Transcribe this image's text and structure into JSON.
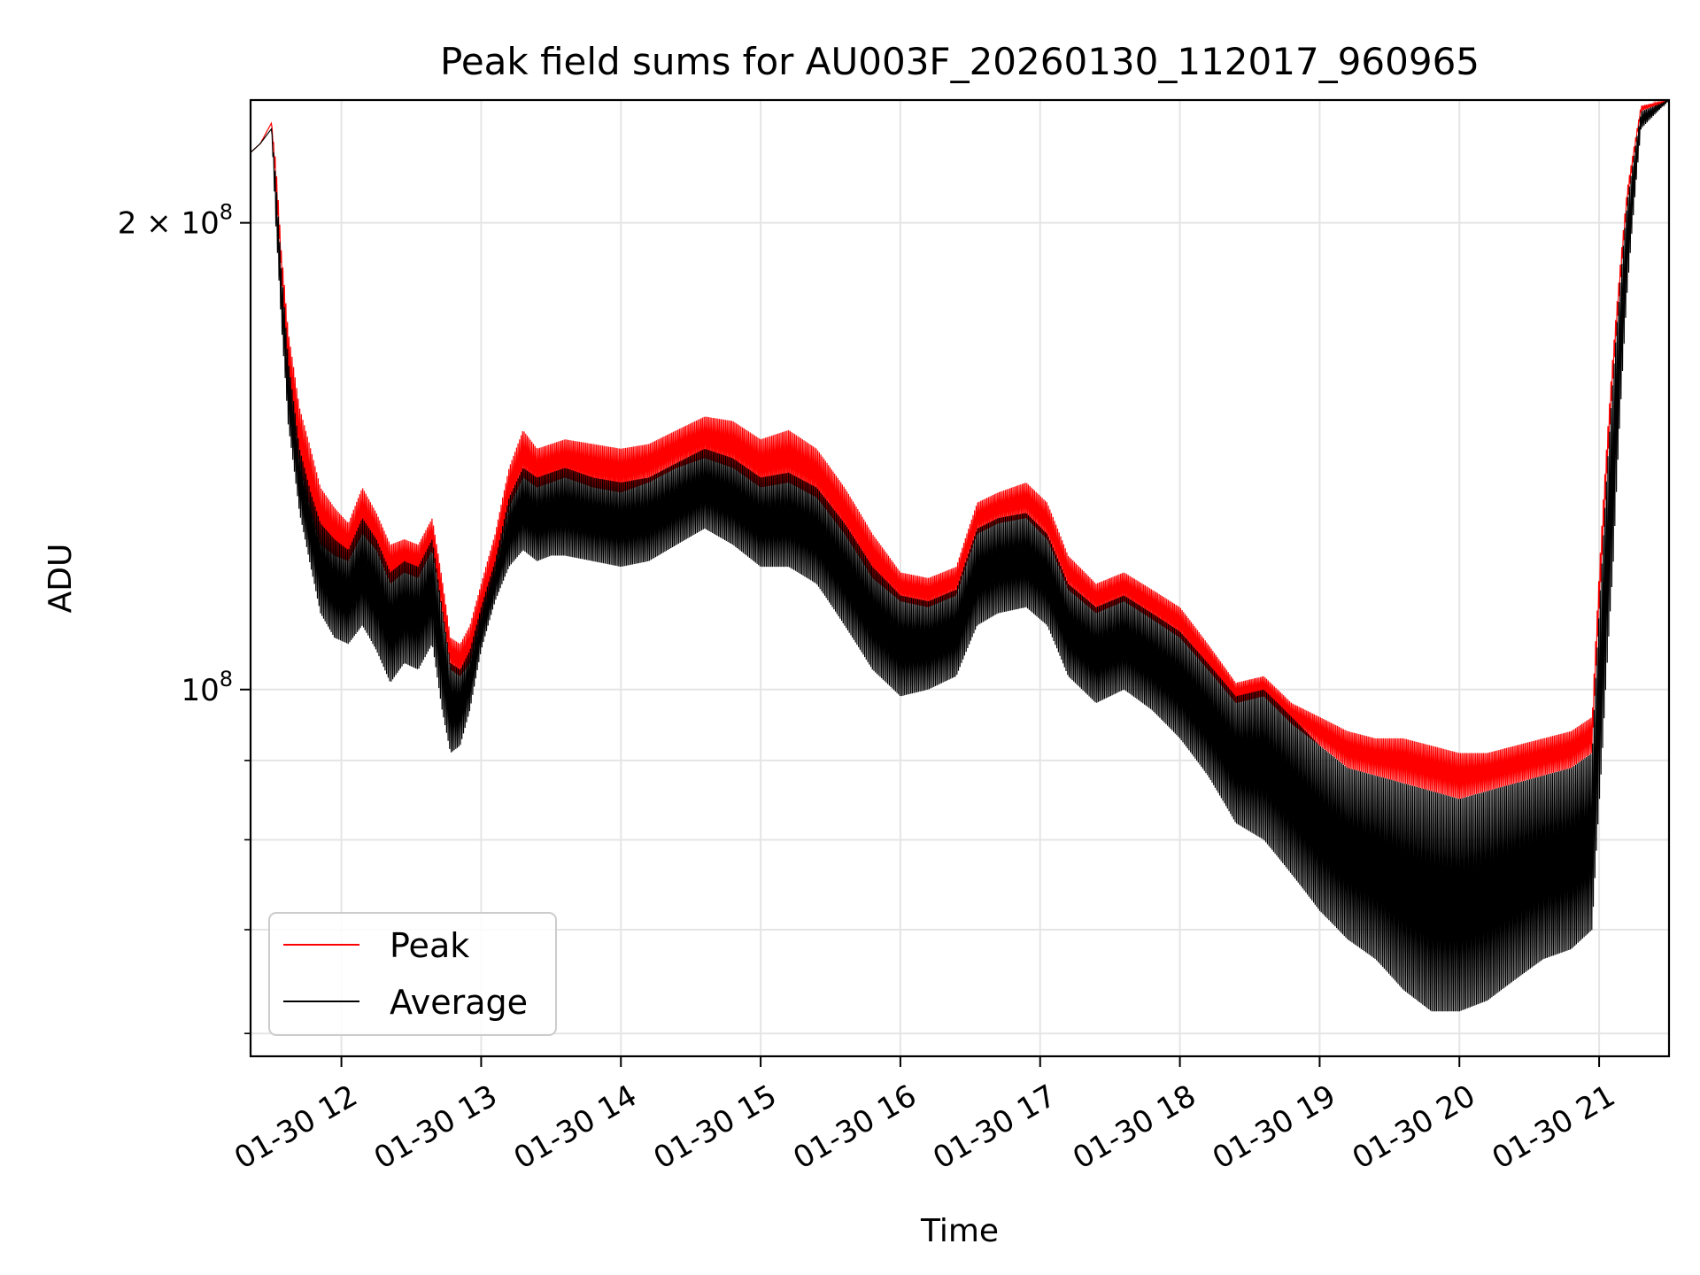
{
  "chart_data": {
    "type": "line",
    "title": "Peak field sums for AU003F_20260130_112017_960965",
    "xlabel": "Time",
    "ylabel": "ADU",
    "yscale": "log",
    "ylim": [
      58000000,
      240000000
    ],
    "xlim": [
      11.35,
      21.5
    ],
    "grid": true,
    "x_ticks": [
      {
        "value": 12,
        "label": "01-30 12"
      },
      {
        "value": 13,
        "label": "01-30 13"
      },
      {
        "value": 14,
        "label": "01-30 14"
      },
      {
        "value": 15,
        "label": "01-30 15"
      },
      {
        "value": 16,
        "label": "01-30 16"
      },
      {
        "value": 17,
        "label": "01-30 17"
      },
      {
        "value": 18,
        "label": "01-30 18"
      },
      {
        "value": 19,
        "label": "01-30 19"
      },
      {
        "value": 20,
        "label": "01-30 20"
      },
      {
        "value": 21,
        "label": "01-30 21"
      }
    ],
    "y_ticks": [
      {
        "value": 100000000,
        "base": "10",
        "exp": "8",
        "coef": ""
      },
      {
        "value": 200000000,
        "base": "10",
        "exp": "8",
        "coef": "2 × "
      }
    ],
    "y_minor_ticks": [
      60000000,
      70000000,
      80000000,
      90000000
    ],
    "legend": {
      "position": "lower-left",
      "entries": [
        "Peak",
        "Average"
      ]
    },
    "series": [
      {
        "name": "Peak",
        "color": "#ff0000",
        "envelope": {
          "x": [
            11.35,
            11.42,
            11.5,
            11.53,
            11.57,
            11.62,
            11.7,
            11.78,
            11.85,
            11.95,
            12.05,
            12.15,
            12.25,
            12.35,
            12.45,
            12.55,
            12.65,
            12.72,
            12.78,
            12.85,
            12.92,
            13.0,
            13.1,
            13.2,
            13.3,
            13.4,
            13.5,
            13.6,
            13.8,
            14.0,
            14.2,
            14.4,
            14.6,
            14.8,
            15.0,
            15.2,
            15.4,
            15.6,
            15.8,
            16.0,
            16.2,
            16.4,
            16.55,
            16.7,
            16.9,
            17.05,
            17.2,
            17.4,
            17.6,
            17.8,
            18.0,
            18.2,
            18.4,
            18.6,
            18.8,
            19.0,
            19.2,
            19.4,
            19.6,
            19.8,
            20.0,
            20.2,
            20.4,
            20.6,
            20.8,
            20.95,
            21.02,
            21.1,
            21.2,
            21.3,
            21.5
          ],
          "high": [
            222000000,
            225000000,
            232000000,
            219000000,
            192000000,
            170000000,
            152000000,
            143000000,
            135000000,
            131000000,
            128000000,
            135000000,
            130000000,
            124000000,
            125000000,
            124000000,
            129000000,
            118000000,
            108000000,
            107000000,
            110000000,
            117000000,
            126000000,
            139000000,
            147000000,
            143000000,
            144000000,
            145000000,
            144000000,
            143000000,
            144000000,
            147000000,
            150000000,
            149000000,
            145000000,
            147000000,
            143000000,
            135000000,
            126000000,
            119000000,
            118000000,
            120000000,
            132000000,
            134000000,
            136000000,
            132000000,
            122000000,
            117000000,
            119000000,
            116000000,
            113000000,
            107000000,
            101000000,
            102000000,
            98000000,
            96000000,
            94000000,
            93000000,
            93000000,
            92000000,
            91000000,
            91000000,
            92000000,
            93000000,
            94000000,
            96000000,
            128000000,
            165000000,
            210000000,
            238000000,
            240000000
          ],
          "low": [
            222000000,
            225000000,
            232000000,
            210000000,
            185000000,
            158000000,
            140000000,
            130000000,
            124000000,
            122000000,
            121000000,
            126000000,
            123000000,
            117000000,
            119000000,
            118000000,
            123000000,
            112000000,
            103000000,
            102000000,
            104000000,
            111000000,
            119000000,
            131000000,
            137000000,
            135000000,
            136000000,
            137000000,
            135000000,
            134000000,
            136000000,
            139000000,
            141000000,
            139000000,
            135000000,
            136000000,
            133000000,
            126000000,
            118000000,
            114000000,
            113000000,
            115000000,
            126000000,
            128000000,
            129000000,
            125000000,
            116000000,
            112000000,
            114000000,
            111000000,
            108000000,
            103000000,
            98000000,
            99000000,
            95000000,
            92000000,
            89000000,
            88000000,
            87000000,
            86000000,
            85000000,
            86000000,
            87000000,
            88000000,
            89000000,
            91000000,
            120000000,
            158000000,
            205000000,
            236000000,
            240000000
          ]
        }
      },
      {
        "name": "Average",
        "color": "#000000",
        "envelope": {
          "x": [
            11.35,
            11.42,
            11.5,
            11.53,
            11.57,
            11.62,
            11.7,
            11.78,
            11.85,
            11.95,
            12.05,
            12.15,
            12.25,
            12.35,
            12.45,
            12.55,
            12.65,
            12.72,
            12.78,
            12.85,
            12.92,
            13.0,
            13.1,
            13.2,
            13.3,
            13.4,
            13.5,
            13.6,
            13.8,
            14.0,
            14.2,
            14.4,
            14.6,
            14.8,
            15.0,
            15.2,
            15.4,
            15.6,
            15.8,
            16.0,
            16.2,
            16.4,
            16.55,
            16.7,
            16.9,
            17.05,
            17.2,
            17.4,
            17.6,
            17.8,
            18.0,
            18.2,
            18.4,
            18.6,
            18.8,
            19.0,
            19.2,
            19.4,
            19.6,
            19.8,
            20.0,
            20.2,
            20.4,
            20.6,
            20.8,
            20.95,
            21.02,
            21.1,
            21.2,
            21.3,
            21.5
          ],
          "high": [
            222000000,
            225000000,
            230000000,
            214000000,
            187000000,
            163000000,
            143000000,
            134000000,
            128000000,
            125000000,
            123000000,
            129000000,
            125000000,
            119000000,
            121000000,
            120000000,
            125000000,
            113000000,
            104000000,
            103000000,
            106000000,
            113000000,
            121000000,
            133000000,
            139000000,
            137000000,
            138000000,
            139000000,
            137000000,
            136000000,
            137000000,
            140000000,
            143000000,
            141000000,
            137000000,
            138000000,
            135000000,
            128000000,
            120000000,
            115000000,
            114000000,
            116000000,
            127000000,
            129000000,
            130000000,
            126000000,
            117000000,
            113000000,
            115000000,
            112000000,
            109000000,
            104000000,
            99000000,
            100000000,
            96000000,
            92000000,
            89000000,
            88000000,
            87000000,
            86000000,
            85000000,
            86000000,
            87000000,
            88000000,
            89000000,
            91000000,
            121000000,
            159000000,
            206000000,
            236000000,
            240000000
          ],
          "low": [
            222000000,
            225000000,
            230000000,
            200000000,
            172000000,
            148000000,
            130000000,
            120000000,
            112000000,
            108000000,
            107000000,
            110000000,
            106000000,
            101000000,
            104000000,
            103000000,
            107000000,
            97000000,
            91000000,
            92000000,
            97000000,
            106000000,
            114000000,
            120000000,
            123000000,
            121000000,
            122000000,
            122000000,
            121000000,
            120000000,
            121000000,
            124000000,
            127000000,
            124000000,
            120000000,
            120000000,
            117000000,
            110000000,
            103000000,
            99000000,
            100000000,
            102000000,
            110000000,
            112000000,
            113000000,
            110000000,
            102000000,
            98000000,
            100000000,
            97000000,
            93000000,
            88000000,
            82000000,
            80000000,
            76000000,
            72000000,
            69000000,
            67000000,
            64000000,
            62000000,
            62000000,
            63000000,
            65000000,
            67000000,
            68000000,
            70000000,
            90000000,
            120000000,
            180000000,
            230000000,
            240000000
          ]
        }
      }
    ]
  }
}
